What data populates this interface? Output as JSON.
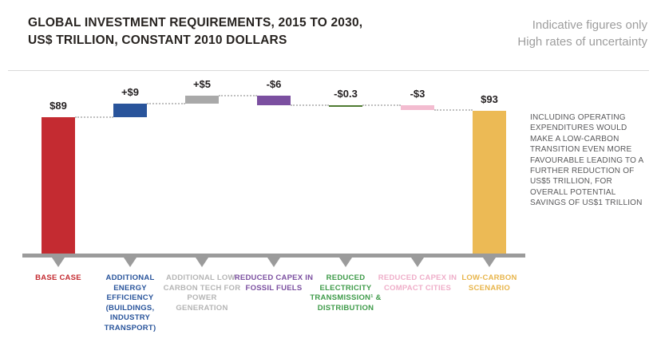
{
  "header": {
    "title_line1": "GLOBAL INVESTMENT REQUIREMENTS, 2015 TO 2030,",
    "title_line2": "US$ TRILLION, CONSTANT 2010 DOLLARS",
    "note_line1": "Indicative figures only",
    "note_line2": "High rates of uncertainty"
  },
  "annotation": {
    "text": "INCLUDING OPERATING EXPENDITURES WOULD MAKE A LOW-CARBON TRANSITION EVEN MORE FAVOURABLE LEADING TO A FURTHER REDUCTION OF US$5 TRILLION, FOR OVERALL POTENTIAL SAVINGS OF US$1 TRILLION"
  },
  "chart_data": {
    "type": "bar",
    "subtype": "waterfall",
    "title": "GLOBAL INVESTMENT REQUIREMENTS, 2015 TO 2030, US$ TRILLION, CONSTANT 2010 DOLLARS",
    "unit": "US$ trillion, constant 2010 dollars",
    "ylim": [
      0,
      105
    ],
    "grid": false,
    "axis_color": "#9b9b9b",
    "connector_color": "#c0c0c0",
    "categories": [
      "BASE CASE",
      "ADDITIONAL ENERGY EFFICIENCY (BUILDINGS, INDUSTRY TRANSPORT)",
      "ADDITIONAL LOW-CARBON TECH FOR POWER GENERATION",
      "REDUCED CAPEX IN FOSSIL FUELS",
      "REDUCED ELECTRICITY TRANSMISSION¹ & DISTRIBUTION",
      "REDUCED CAPEX IN COMPACT CITIES",
      "LOW-CARBON SCENARIO"
    ],
    "columns": [
      {
        "category": "BASE CASE",
        "value_label": "$89",
        "value": 89,
        "kind": "total",
        "bar_color": "#c42b31",
        "label_color": "#c42b31"
      },
      {
        "category": "ADDITIONAL ENERGY EFFICIENCY (BUILDINGS, INDUSTRY TRANSPORT)",
        "value_label": "+$9",
        "value": 9,
        "kind": "delta",
        "bar_color": "#29549b",
        "label_color": "#29549b"
      },
      {
        "category": "ADDITIONAL LOW-CARBON TECH FOR POWER GENERATION",
        "value_label": "+$5",
        "value": 5,
        "kind": "delta",
        "bar_color": "#a9a9a9",
        "label_color": "#b5b5b5"
      },
      {
        "category": "REDUCED CAPEX IN FOSSIL FUELS",
        "value_label": "-$6",
        "value": -6,
        "kind": "delta",
        "bar_color": "#7b4fa0",
        "label_color": "#7b4fa0"
      },
      {
        "category": "REDUCED ELECTRICITY TRANSMISSION¹ & DISTRIBUTION",
        "value_label": "-$0.3",
        "value": -0.3,
        "kind": "delta",
        "bar_color": "#4e7b31",
        "label_color": "#3f9b4a"
      },
      {
        "category": "REDUCED CAPEX IN COMPACT CITIES",
        "value_label": "-$3",
        "value": -3,
        "kind": "delta",
        "bar_color": "#f3bcd0",
        "label_color": "#efaec9"
      },
      {
        "category": "LOW-CARBON SCENARIO",
        "value_label": "$93",
        "value": 93,
        "kind": "total",
        "bar_color": "#ecba55",
        "label_color": "#e8b54b"
      }
    ]
  }
}
